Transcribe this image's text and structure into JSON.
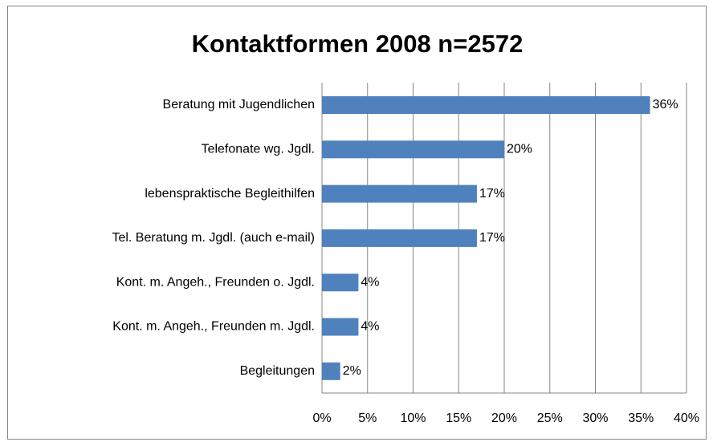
{
  "chart_data": {
    "type": "bar",
    "orientation": "horizontal",
    "title": "Kontaktformen 2008   n=2572",
    "categories": [
      "Beratung mit Jugendlichen",
      "Telefonate wg. Jgdl.",
      "lebenspraktische Begleithilfen",
      "Tel. Beratung m. Jgdl. (auch e-mail)",
      "Kont. m. Angeh., Freunden o. Jgdl.",
      "Kont. m. Angeh., Freunden m. Jgdl.",
      "Begleitungen"
    ],
    "values": [
      36,
      20,
      17,
      17,
      4,
      4,
      2
    ],
    "value_labels": [
      "36%",
      "20%",
      "17%",
      "17%",
      "4%",
      "4%",
      "2%"
    ],
    "color": "#4f81bd",
    "xlim": [
      0,
      40
    ],
    "xticks": [
      {
        "value": 0,
        "label": "0%"
      },
      {
        "value": 5,
        "label": "5%"
      },
      {
        "value": 10,
        "label": "10%"
      },
      {
        "value": 15,
        "label": "15%"
      },
      {
        "value": 20,
        "label": "20%"
      },
      {
        "value": 25,
        "label": "25%"
      },
      {
        "value": 30,
        "label": "30%"
      },
      {
        "value": 35,
        "label": "35%"
      },
      {
        "value": 40,
        "label": "40%"
      }
    ],
    "grid": true
  }
}
